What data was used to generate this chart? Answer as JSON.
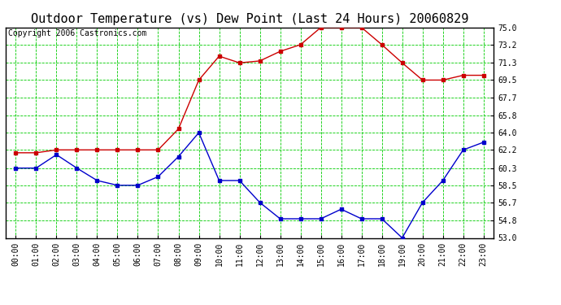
{
  "title": "Outdoor Temperature (vs) Dew Point (Last 24 Hours) 20060829",
  "copyright": "Copyright 2006 Castronics.com",
  "x_labels": [
    "00:00",
    "01:00",
    "02:00",
    "03:00",
    "04:00",
    "05:00",
    "06:00",
    "07:00",
    "08:00",
    "09:00",
    "10:00",
    "11:00",
    "12:00",
    "13:00",
    "14:00",
    "15:00",
    "16:00",
    "17:00",
    "18:00",
    "19:00",
    "20:00",
    "21:00",
    "22:00",
    "23:00"
  ],
  "temp_data": [
    61.9,
    61.9,
    62.2,
    62.2,
    62.2,
    62.2,
    62.2,
    62.2,
    64.4,
    69.5,
    72.0,
    71.3,
    71.5,
    72.5,
    73.2,
    75.0,
    75.0,
    75.0,
    73.2,
    71.3,
    69.5,
    69.5,
    70.0,
    70.0
  ],
  "dew_data": [
    60.3,
    60.3,
    61.7,
    60.3,
    59.0,
    58.5,
    58.5,
    59.4,
    61.5,
    64.0,
    59.0,
    59.0,
    56.7,
    55.0,
    55.0,
    55.0,
    56.0,
    55.0,
    55.0,
    53.0,
    56.7,
    59.0,
    62.2,
    63.0
  ],
  "temp_color": "#cc0000",
  "dew_color": "#0000cc",
  "grid_color": "#00cc00",
  "bg_color": "#ffffff",
  "yticks": [
    53.0,
    54.8,
    56.7,
    58.5,
    60.3,
    62.2,
    64.0,
    65.8,
    67.7,
    69.5,
    71.3,
    73.2,
    75.0
  ],
  "ymin": 53.0,
  "ymax": 75.0,
  "title_fontsize": 11,
  "copyright_fontsize": 7,
  "tick_fontsize": 7
}
